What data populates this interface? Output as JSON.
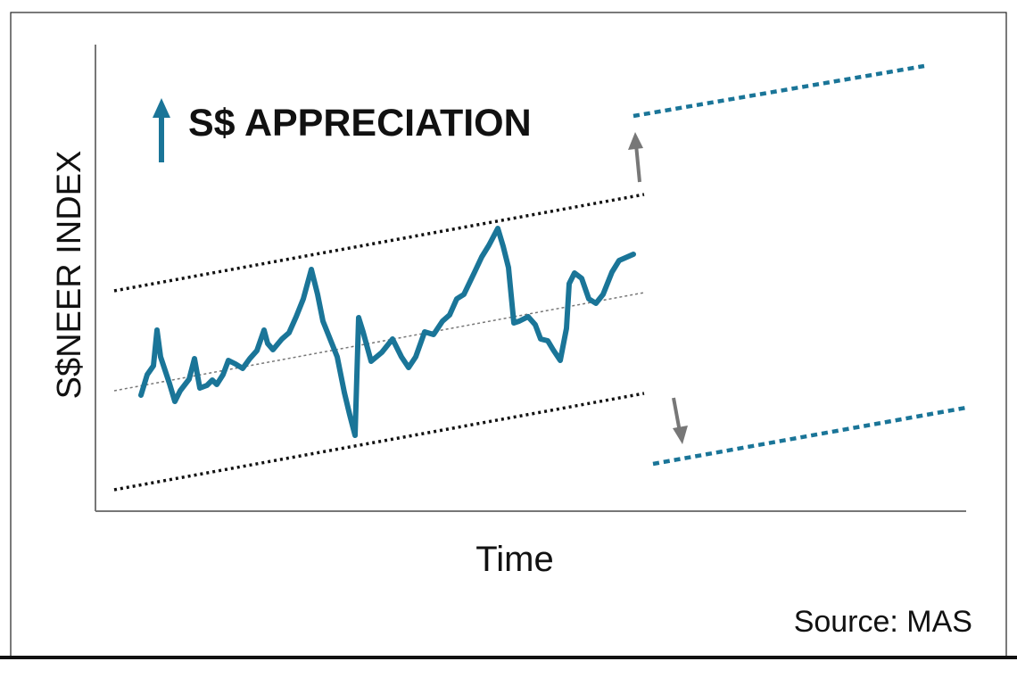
{
  "title": "S$ APPRECIATION",
  "y_axis_label": "S$NEER INDEX",
  "x_axis_label": "Time",
  "source": "Source: MAS"
}
